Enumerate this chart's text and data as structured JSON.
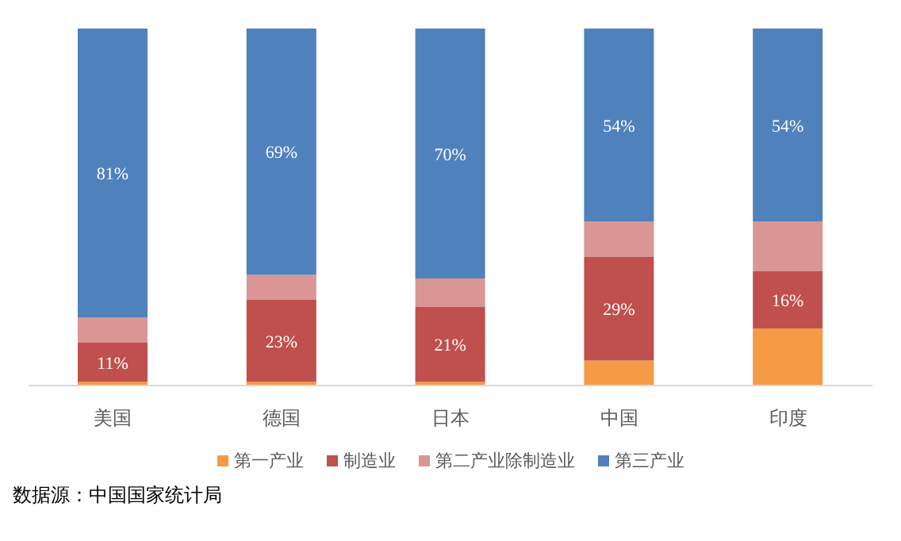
{
  "chart_data": {
    "type": "bar",
    "stacked": true,
    "categories": [
      "美国",
      "德国",
      "日本",
      "中国",
      "印度"
    ],
    "series": [
      {
        "name": "第一产业",
        "color": "#f59a45",
        "values": [
          1,
          1,
          1,
          7,
          16
        ]
      },
      {
        "name": "制造业",
        "color": "#c0504d",
        "values": [
          11,
          23,
          21,
          29,
          16
        ],
        "value_labels": [
          "11%",
          "23%",
          "21%",
          "29%",
          "16%"
        ]
      },
      {
        "name": "第二产业除制造业",
        "color": "#d99694",
        "values": [
          7,
          7,
          8,
          10,
          14
        ]
      },
      {
        "name": "第三产业",
        "color": "#4f81bd",
        "values": [
          81,
          69,
          70,
          54,
          54
        ],
        "value_labels": [
          "81%",
          "69%",
          "70%",
          "54%",
          "54%"
        ]
      }
    ],
    "legend": "bottom",
    "annotations": [
      "数据源：中国国家统计局"
    ]
  }
}
